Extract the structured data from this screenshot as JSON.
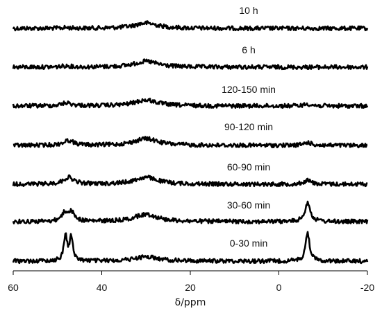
{
  "chart_data": {
    "type": "line",
    "title": "",
    "xlabel": "δ/ppm",
    "ylabel": "",
    "xlim": [
      60,
      -20
    ],
    "x_ticks": [
      60,
      40,
      20,
      0,
      -20
    ],
    "x_tick_labels": [
      "60",
      "40",
      "20",
      "0",
      "-20"
    ],
    "reversed_x": true,
    "stacked": true,
    "grid": false,
    "legend": "none",
    "line_color": "#000000",
    "series": [
      {
        "name": "10 h",
        "peaks": [
          {
            "center": 48,
            "height": 0.06,
            "width": 1.2
          },
          {
            "center": 30,
            "height": 0.55,
            "width": 3.2
          },
          {
            "center": -6.5,
            "height": 0.0,
            "width": 1.0
          }
        ]
      },
      {
        "name": "6 h",
        "peaks": [
          {
            "center": 48,
            "height": 0.12,
            "width": 1.2
          },
          {
            "center": 30,
            "height": 0.6,
            "width": 3.2
          },
          {
            "center": -6.5,
            "height": 0.0,
            "width": 1.0
          }
        ]
      },
      {
        "name": "120-150 min",
        "peaks": [
          {
            "center": 48,
            "height": 0.3,
            "width": 1.4
          },
          {
            "center": 30,
            "height": 0.6,
            "width": 3.2
          },
          {
            "center": -6.5,
            "height": 0.2,
            "width": 1.0
          }
        ]
      },
      {
        "name": "90-120 min",
        "peaks": [
          {
            "center": 47.5,
            "height": 0.5,
            "width": 1.4
          },
          {
            "center": 30,
            "height": 0.7,
            "width": 3.2
          },
          {
            "center": -6.5,
            "height": 0.3,
            "width": 1.0
          }
        ]
      },
      {
        "name": "60-90 min",
        "peaks": [
          {
            "center": 47.5,
            "height": 0.7,
            "width": 1.4
          },
          {
            "center": 30,
            "height": 0.7,
            "width": 3.2
          },
          {
            "center": -6.5,
            "height": 0.4,
            "width": 1.0
          }
        ]
      },
      {
        "name": "30-60 min",
        "peaks": [
          {
            "center": 48.3,
            "height": 0.85,
            "width": 0.9
          },
          {
            "center": 46.8,
            "height": 0.85,
            "width": 0.9
          },
          {
            "center": 30,
            "height": 0.75,
            "width": 3.2
          },
          {
            "center": -6.5,
            "height": 2.0,
            "width": 0.7
          }
        ]
      },
      {
        "name": "0-30 min",
        "peaks": [
          {
            "center": 48.2,
            "height": 2.6,
            "width": 0.45
          },
          {
            "center": 46.9,
            "height": 2.4,
            "width": 0.45
          },
          {
            "center": 30,
            "height": 0.45,
            "width": 3.2
          },
          {
            "center": -6.5,
            "height": 2.9,
            "width": 0.55
          }
        ]
      }
    ]
  }
}
